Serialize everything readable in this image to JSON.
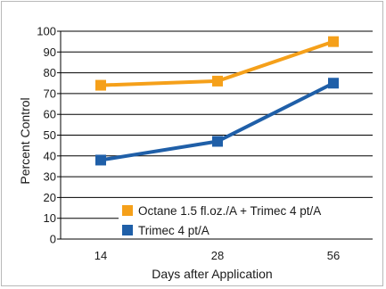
{
  "chart_data": {
    "type": "line",
    "categories": [
      "14",
      "28",
      "56"
    ],
    "xlabel": "Days after Application",
    "ylabel": "Percent Control",
    "ylim": [
      0,
      100
    ],
    "yticks": [
      "0",
      "10",
      "20",
      "30",
      "40",
      "50",
      "60",
      "70",
      "80",
      "90",
      "100"
    ],
    "grid": true,
    "legend_position": "bottom-right",
    "series": [
      {
        "name": "Octane 1.5 fl.oz./A + Trimec 4 pt/A",
        "values": [
          74,
          76,
          95
        ],
        "color": "#f5a01a"
      },
      {
        "name": "Trimec 4 pt/A",
        "values": [
          38,
          47,
          75
        ],
        "color": "#1f5fa8"
      }
    ]
  }
}
